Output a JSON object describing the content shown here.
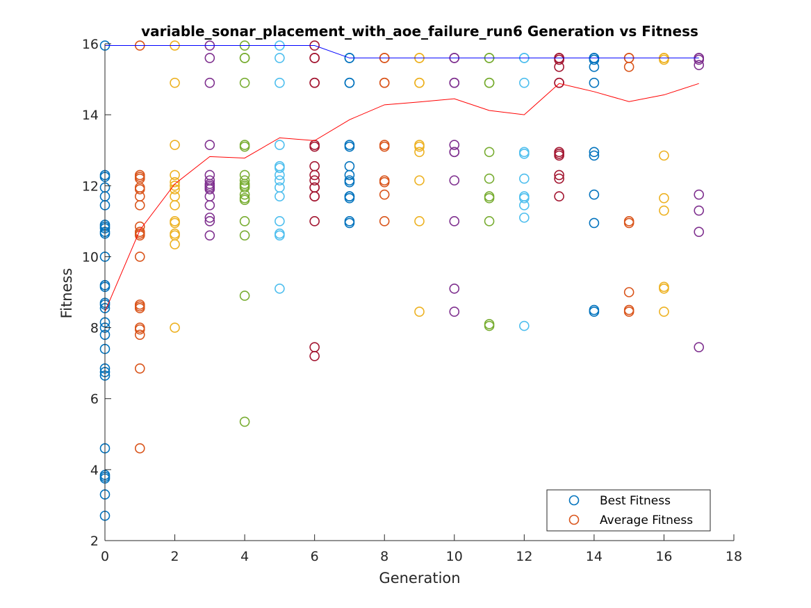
{
  "chart_data": {
    "type": "scatter",
    "title": "variable_sonar_placement_with_aoe_failure_run6 Generation vs Fitness",
    "xlabel": "Generation",
    "ylabel": "Fitness",
    "xlim": [
      0,
      18
    ],
    "ylim": [
      2,
      16
    ],
    "xticks": [
      "0",
      "2",
      "4",
      "6",
      "8",
      "10",
      "12",
      "14",
      "16",
      "18"
    ],
    "yticks": [
      "2",
      "4",
      "6",
      "8",
      "10",
      "12",
      "14",
      "16"
    ],
    "grid": false,
    "legend": {
      "placement": "bottom-right",
      "entries": [
        {
          "label": "Best Fitness",
          "color": "#0072BD"
        },
        {
          "label": "Average Fitness",
          "color": "#D95319"
        }
      ]
    },
    "generation_colors": [
      "#0072BD",
      "#D95319",
      "#EDB120",
      "#7E2F8E",
      "#77AC30",
      "#4DBEEE",
      "#A2142F",
      "#0072BD",
      "#D95319",
      "#EDB120",
      "#7E2F8E",
      "#77AC30",
      "#4DBEEE",
      "#A2142F",
      "#0072BD",
      "#D95319",
      "#EDB120",
      "#7E2F8E"
    ],
    "population": [
      {
        "generation": 0,
        "fitness": [
          15.95,
          12.3,
          12.25,
          11.95,
          11.7,
          11.45,
          10.9,
          10.85,
          10.8,
          10.7,
          10.65,
          10.0,
          9.2,
          9.15,
          8.7,
          8.65,
          8.55,
          8.15,
          8.0,
          7.8,
          7.4,
          6.85,
          6.75,
          6.65,
          4.6,
          3.85,
          3.8,
          3.75,
          3.3,
          2.7
        ]
      },
      {
        "generation": 1,
        "fitness": [
          15.95,
          12.3,
          12.25,
          12.2,
          11.95,
          11.9,
          11.7,
          11.45,
          10.85,
          10.7,
          10.65,
          10.6,
          10.0,
          8.65,
          8.6,
          8.55,
          8.0,
          7.95,
          7.8,
          6.85,
          4.6
        ]
      },
      {
        "generation": 2,
        "fitness": [
          15.95,
          14.9,
          13.15,
          12.3,
          12.1,
          12.0,
          11.9,
          11.7,
          11.45,
          11.0,
          10.95,
          10.65,
          10.6,
          10.35,
          8.0
        ]
      },
      {
        "generation": 3,
        "fitness": [
          15.95,
          15.6,
          14.9,
          13.15,
          12.3,
          12.15,
          12.05,
          12.0,
          11.95,
          11.9,
          11.7,
          11.45,
          11.1,
          11.0,
          10.6
        ]
      },
      {
        "generation": 4,
        "fitness": [
          15.95,
          15.6,
          15.6,
          14.9,
          13.15,
          13.1,
          12.3,
          12.15,
          12.05,
          12.0,
          11.95,
          11.75,
          11.65,
          11.6,
          11.0,
          10.6,
          8.9,
          5.35
        ]
      },
      {
        "generation": 5,
        "fitness": [
          15.95,
          15.6,
          14.9,
          13.15,
          12.55,
          12.5,
          12.3,
          12.15,
          11.95,
          11.7,
          11.0,
          10.65,
          10.6,
          9.1
        ]
      },
      {
        "generation": 6,
        "fitness": [
          15.95,
          15.6,
          15.6,
          14.9,
          14.9,
          13.15,
          13.1,
          12.55,
          12.3,
          12.15,
          11.95,
          11.95,
          11.7,
          11.7,
          11.0,
          7.45,
          7.2
        ]
      },
      {
        "generation": 7,
        "fitness": [
          15.6,
          15.6,
          14.9,
          14.9,
          13.15,
          13.1,
          12.55,
          12.3,
          12.15,
          12.1,
          11.7,
          11.7,
          11.65,
          11.0,
          10.95
        ]
      },
      {
        "generation": 8,
        "fitness": [
          15.6,
          15.6,
          14.9,
          14.9,
          13.15,
          13.1,
          12.15,
          12.1,
          11.75,
          11.0
        ]
      },
      {
        "generation": 9,
        "fitness": [
          15.6,
          15.6,
          14.9,
          14.9,
          13.15,
          13.1,
          12.95,
          12.15,
          11.0,
          8.45
        ]
      },
      {
        "generation": 10,
        "fitness": [
          15.6,
          15.6,
          14.9,
          14.9,
          13.15,
          12.95,
          12.95,
          12.15,
          11.0,
          9.1,
          8.45
        ]
      },
      {
        "generation": 11,
        "fitness": [
          15.6,
          15.6,
          14.9,
          14.9,
          12.95,
          12.2,
          11.7,
          11.65,
          11.0,
          8.1,
          8.05
        ]
      },
      {
        "generation": 12,
        "fitness": [
          15.6,
          15.6,
          14.9,
          12.95,
          12.9,
          12.2,
          11.7,
          11.65,
          11.45,
          11.1,
          8.05
        ]
      },
      {
        "generation": 13,
        "fitness": [
          15.6,
          15.6,
          15.55,
          15.35,
          14.9,
          14.9,
          12.95,
          12.9,
          12.85,
          12.3,
          12.2,
          11.7
        ]
      },
      {
        "generation": 14,
        "fitness": [
          15.6,
          15.6,
          15.55,
          15.35,
          14.9,
          12.95,
          12.85,
          11.75,
          10.95,
          8.5,
          8.45
        ]
      },
      {
        "generation": 15,
        "fitness": [
          15.6,
          15.6,
          15.35,
          11.0,
          10.95,
          9.0,
          8.5,
          8.45
        ]
      },
      {
        "generation": 16,
        "fitness": [
          15.6,
          15.6,
          15.55,
          12.85,
          11.65,
          11.3,
          9.15,
          9.1,
          8.45
        ]
      },
      {
        "generation": 17,
        "fitness": [
          15.6,
          15.6,
          15.55,
          15.4,
          11.75,
          11.3,
          10.7,
          7.45
        ]
      }
    ],
    "series": [
      {
        "name": "Best Fitness",
        "color": "#0000FF",
        "x": [
          0,
          1,
          2,
          3,
          4,
          5,
          6,
          7,
          8,
          9,
          10,
          11,
          12,
          13,
          14,
          15,
          16,
          17
        ],
        "y": [
          15.95,
          15.95,
          15.95,
          15.95,
          15.95,
          15.95,
          15.95,
          15.6,
          15.6,
          15.6,
          15.6,
          15.6,
          15.6,
          15.6,
          15.6,
          15.6,
          15.6,
          15.6
        ]
      },
      {
        "name": "Average Fitness",
        "color": "#FF0000",
        "x": [
          0,
          1,
          2,
          3,
          4,
          5,
          6,
          7,
          8,
          9,
          10,
          11,
          12,
          13,
          14,
          15,
          16,
          17
        ],
        "y": [
          8.45,
          10.75,
          12.05,
          12.82,
          12.78,
          13.35,
          13.27,
          13.86,
          14.28,
          14.36,
          14.45,
          14.12,
          14.0,
          14.88,
          14.65,
          14.37,
          14.56,
          14.88
        ]
      }
    ]
  }
}
